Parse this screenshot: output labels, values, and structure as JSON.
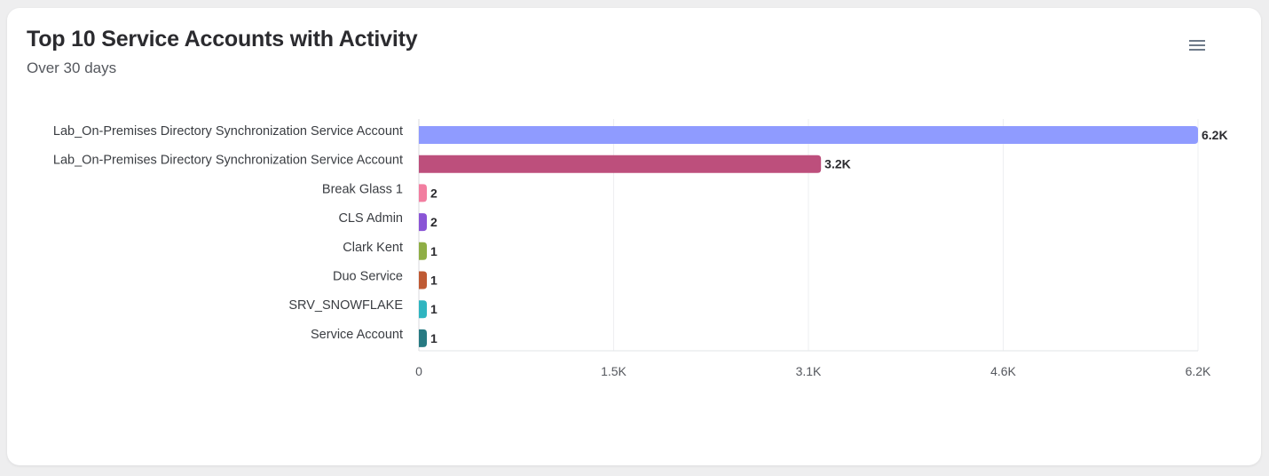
{
  "header": {
    "title": "Top 10 Service Accounts with Activity",
    "subtitle": "Over 30 days",
    "menu_icon": "hamburger-menu-icon"
  },
  "chart_data": {
    "type": "bar",
    "orientation": "horizontal",
    "title": "Top 10 Service Accounts with Activity",
    "subtitle": "Over 30 days",
    "categories": [
      "Lab_On-Premises Directory Synchronization Service Account",
      "Lab_On-Premises Directory Synchronization Service Account",
      "Break Glass 1",
      "CLS Admin",
      "Clark Kent",
      "Duo Service",
      "SRV_SNOWFLAKE",
      "Service Account"
    ],
    "values": [
      6200,
      3200,
      2,
      2,
      1,
      1,
      1,
      1
    ],
    "data_labels": [
      "6.2K",
      "3.2K",
      "2",
      "2",
      "1",
      "1",
      "1",
      "1"
    ],
    "colors": [
      "#8f9bff",
      "#bd4f7c",
      "#f27ea0",
      "#8a55d6",
      "#8fae45",
      "#bf5a33",
      "#2fb5c0",
      "#277a82"
    ],
    "xlim": [
      0,
      6200
    ],
    "xticks": [
      0,
      1550,
      3100,
      4650,
      6200
    ],
    "xtick_labels": [
      "0",
      "1.5K",
      "3.1K",
      "4.6K",
      "6.2K"
    ],
    "grid": true,
    "legend": "none",
    "xlabel": "",
    "ylabel": ""
  }
}
